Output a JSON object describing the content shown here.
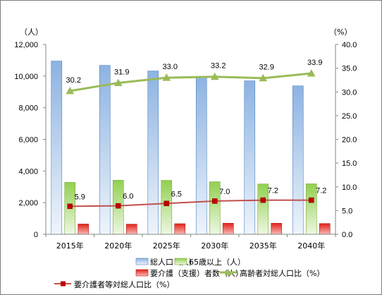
{
  "chart_data": {
    "type": "bar",
    "title": "",
    "categories": [
      "2015年",
      "2020年",
      "2025年",
      "2030年",
      "2035年",
      "2040年"
    ],
    "y_left": {
      "unit": "（人）",
      "min": 0,
      "max": 12000,
      "step": 2000,
      "ticks": [
        "0",
        "2,000",
        "4,000",
        "6,000",
        "8,000",
        "10,000",
        "12,000"
      ]
    },
    "y_right": {
      "unit": "（%）",
      "min": 0,
      "max": 40,
      "step": 5,
      "ticks": [
        "0.0",
        "5.0",
        "10.0",
        "15.0",
        "20.0",
        "25.0",
        "30.0",
        "35.0",
        "40.0"
      ]
    },
    "bar_series": [
      {
        "name": "総人口（人）",
        "axis": "left",
        "color": "#8db3e2",
        "values": [
          10950,
          10680,
          10320,
          9980,
          9700,
          9380
        ]
      },
      {
        "name": "65歳以上（人）",
        "axis": "left",
        "color": "#92d050",
        "values": [
          3280,
          3420,
          3410,
          3320,
          3180,
          3190
        ]
      },
      {
        "name": "要介護（支援）者数（人）",
        "axis": "left",
        "color": "#e32219",
        "values": [
          650,
          640,
          670,
          700,
          700,
          680
        ]
      }
    ],
    "line_series": [
      {
        "name": "高齢者対総人口比（%）",
        "axis": "right",
        "color": "#9bbb59",
        "marker": "triangle",
        "values": [
          30.2,
          31.9,
          33.0,
          33.2,
          32.9,
          33.9
        ],
        "labels": [
          "30.2",
          "31.9",
          "33.0",
          "33.2",
          "32.9",
          "33.9"
        ]
      },
      {
        "name": "要介護者等対総人口比（%）",
        "axis": "right",
        "color": "#c0504d",
        "marker": "square",
        "values": [
          5.9,
          6.0,
          6.5,
          7.0,
          7.2,
          7.2
        ],
        "labels": [
          "5.9",
          "6.0",
          "6.5",
          "7.0",
          "7.2",
          "7.2"
        ]
      }
    ],
    "gridlines": false,
    "legend_position": "bottom"
  }
}
